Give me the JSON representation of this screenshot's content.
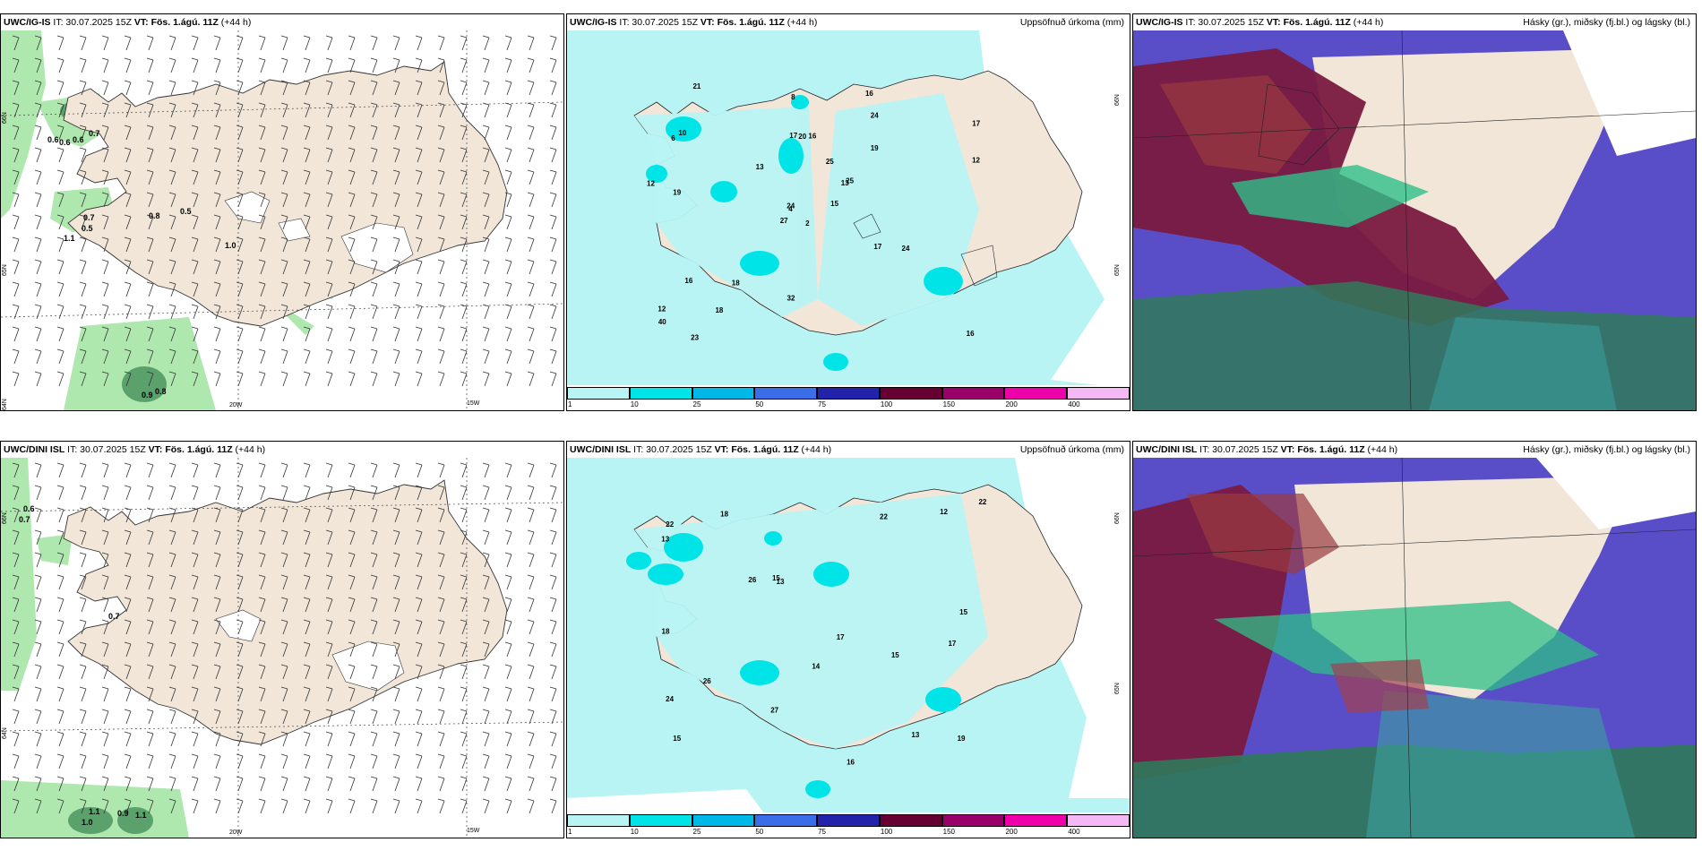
{
  "panels": [
    {
      "id": "top-left",
      "run": "UWC/IG-IS",
      "it": "IT: 30.07.2025 15Z",
      "vt": "VT: Fös. 1.ágú. 11Z",
      "lead": "(+44 h)",
      "title_right": "",
      "lat_labels": [
        "66N",
        "65N",
        "64N"
      ],
      "lon_labels": [
        "20W",
        "15W"
      ],
      "values": [
        "0.6",
        "0.6",
        "0.6",
        "0.7",
        "0.7",
        "0.5",
        "0.8",
        "0.5",
        "1.1",
        "1.0",
        "0.9",
        "0.8"
      ]
    },
    {
      "id": "top-mid",
      "run": "UWC/IG-IS",
      "it": "IT: 30.07.2025 15Z",
      "vt": "VT: Fös. 1.ágú. 11Z",
      "lead": "(+44 h)",
      "title_right": "Uppsöfnuð úrkoma (mm)",
      "lat_labels": [
        "66N",
        "65N"
      ],
      "values": [
        "2",
        "6",
        "4",
        "12",
        "13",
        "18",
        "16",
        "16",
        "24",
        "15",
        "21",
        "16",
        "19",
        "17",
        "27",
        "19",
        "23",
        "17",
        "25",
        "16",
        "13",
        "40",
        "18",
        "20",
        "25",
        "24",
        "10",
        "8",
        "12",
        "17",
        "12",
        "24",
        "32"
      ]
    },
    {
      "id": "top-right",
      "run": "UWC/IG-IS",
      "it": "IT: 30.07.2025 15Z",
      "vt": "VT: Fös. 1.ágú. 11Z",
      "lead": "(+44 h)",
      "title_right": "Hásky (gr.), miðsky (fj.bl.) og lágsky (bl.)",
      "values": []
    },
    {
      "id": "bottom-left",
      "run": "UWC/DINI ISL",
      "it": "IT: 30.07.2025 15Z",
      "vt": "VT: Fös. 1.ágú. 11Z",
      "lead": "(+44 h)",
      "title_right": "",
      "lat_labels": [
        "66N",
        "64N"
      ],
      "lon_labels": [
        "20W",
        "15W"
      ],
      "values": [
        "0.6",
        "0.7",
        "0.7",
        "1.1",
        "1.0",
        "0.9",
        "1.1"
      ]
    },
    {
      "id": "bottom-mid",
      "run": "UWC/DINI ISL",
      "it": "IT: 30.07.2025 15Z",
      "vt": "VT: Fös. 1.ágú. 11Z",
      "lead": "(+44 h)",
      "title_right": "Uppsöfnuð úrkoma (mm)",
      "lat_labels": [
        "66N",
        "65N"
      ],
      "values": [
        "15",
        "17",
        "15",
        "18",
        "13",
        "13",
        "24",
        "22",
        "26",
        "16",
        "13",
        "18",
        "22",
        "19",
        "27",
        "15",
        "14",
        "17",
        "15",
        "26",
        "22",
        "12"
      ]
    },
    {
      "id": "bottom-right",
      "run": "UWC/DINI ISL",
      "it": "IT: 30.07.2025 15Z",
      "vt": "VT: Fös. 1.ágú. 11Z",
      "lead": "(+44 h)",
      "title_right": "Hásky (gr.), miðsky (fj.bl.) og lágsky (bl.)",
      "values": []
    }
  ],
  "colorbar": {
    "labels": [
      "1",
      "10",
      "25",
      "50",
      "75",
      "100",
      "150",
      "200",
      "400"
    ],
    "colors": [
      "#b8f4f4",
      "#00e4e8",
      "#00b8e8",
      "#3a6ee8",
      "#2222aa",
      "#660033",
      "#99006a",
      "#ee00aa",
      "#f4b8f4"
    ]
  },
  "colors": {
    "land": "#f1e6d8",
    "ocean": "#ffffff",
    "precip_light": "#b8f4f4",
    "green": "#8de08d",
    "dark_green": "#2f7a4a"
  }
}
